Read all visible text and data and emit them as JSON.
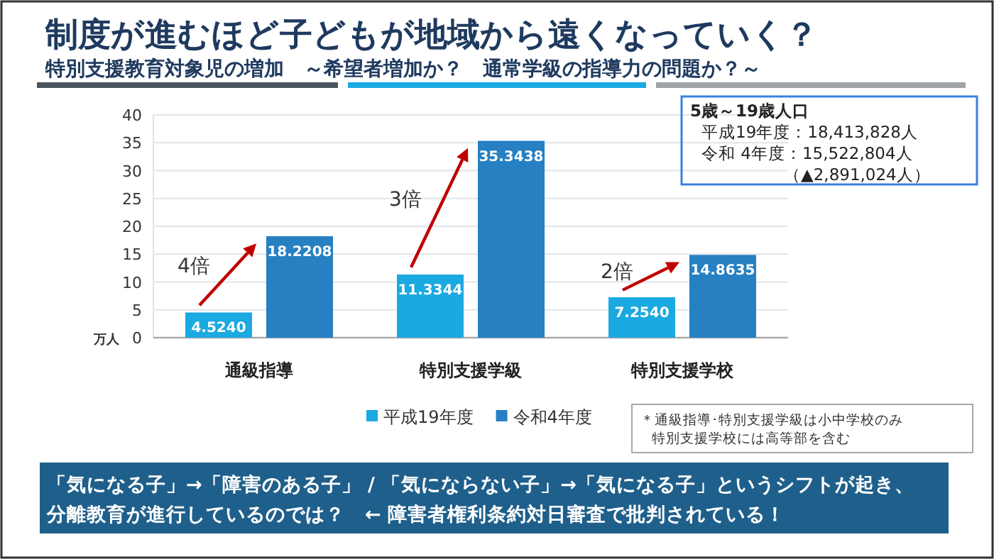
{
  "chart_data": {
    "type": "bar",
    "title": "制度が進むほど子どもが地域から遠くなっていく？",
    "subtitle": "特別支援教育対象児の増加　～希望者増加か？　通常学級の指導力の問題か？～",
    "ylabel": "万人",
    "categories": [
      "通級指導",
      "特別支援学級",
      "特別支援学校"
    ],
    "series": [
      {
        "name": "平成19年度",
        "color": "#1ba9e1",
        "values": [
          4.524,
          11.3344,
          7.254
        ],
        "value_labels": [
          "4.5240",
          "11.3344",
          "7.2540"
        ]
      },
      {
        "name": "令和4年度",
        "color": "#2680c2",
        "values": [
          18.2208,
          35.3438,
          14.8635
        ],
        "value_labels": [
          "18.2208",
          "35.3438",
          "14.8635"
        ]
      }
    ],
    "ylim": [
      0,
      40
    ],
    "yticks": [
      0,
      5,
      10,
      15,
      20,
      25,
      30,
      35,
      40
    ],
    "grid": "y",
    "legend": "bottom",
    "annotations": [
      {
        "text": "4倍",
        "x": "通級指導",
        "y": 13
      },
      {
        "text": "3倍",
        "x": "特別支援学級",
        "y": 25
      },
      {
        "text": "2倍",
        "x": "特別支援学校",
        "y": 12
      },
      "5歳～19歳人口",
      "平成19年度：18,413,828人",
      "令和  4年度：15,522,804人",
      "（▲2,891,024人）",
      "＊通級指導･特別支援学級は小中学校のみ",
      "特別支援学校には高等部を含む",
      "「気になる子」→「障害のある子」 / 「気にならない子」→「気になる子」というシフトが起き、",
      "分離教育が進行しているのでは？　← 障害者権利条約対日審査で批判されている！"
    ]
  }
}
